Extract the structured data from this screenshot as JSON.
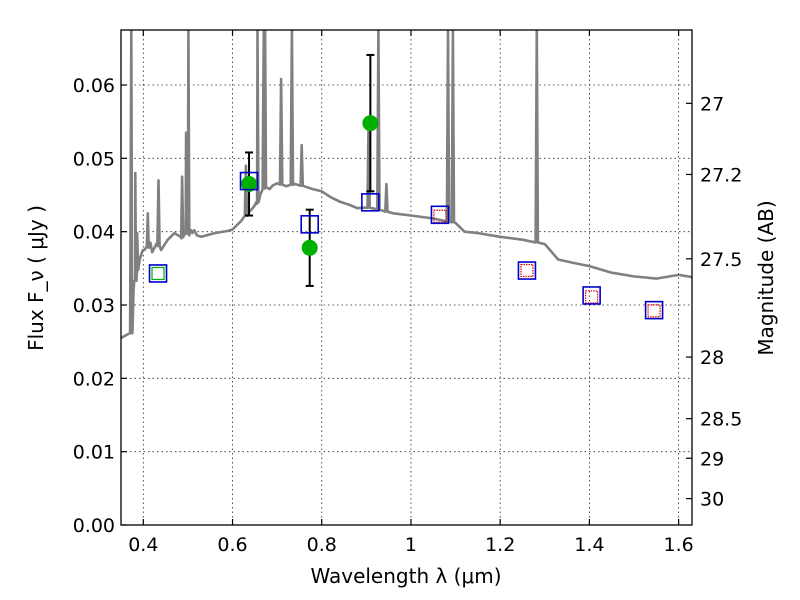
{
  "chart_data": {
    "type": "scatter",
    "xlabel": "Wavelength  λ (μm)",
    "ylabel_left": "Flux  F_ν  ( μJy )",
    "ylabel_right": "Magnitude (AB)",
    "xlim": [
      0.35,
      1.63
    ],
    "ylim": [
      0.0,
      0.0675
    ],
    "grid": true,
    "x_ticks": [
      0.4,
      0.6,
      0.8,
      1.0,
      1.2,
      1.4,
      1.6
    ],
    "x_tick_labels": [
      "0.4",
      "0.6",
      "0.8",
      "1",
      "1.2",
      "1.4",
      "1.6"
    ],
    "y_ticks": [
      0.0,
      0.01,
      0.02,
      0.03,
      0.04,
      0.05,
      0.06
    ],
    "y_tick_labels": [
      "0.00",
      "0.01",
      "0.02",
      "0.03",
      "0.04",
      "0.05",
      "0.06"
    ],
    "right_ticks": [
      {
        "label": "27",
        "flux": 0.0575
      },
      {
        "label": "27.2",
        "flux": 0.0478
      },
      {
        "label": "27.5",
        "flux": 0.0363
      },
      {
        "label": "28",
        "flux": 0.0229
      },
      {
        "label": "28.5",
        "flux": 0.0145
      },
      {
        "label": "29",
        "flux": 0.0091
      },
      {
        "label": "30",
        "flux": 0.0036
      }
    ],
    "model_spectrum": {
      "color": "#808080",
      "x": [
        0.35,
        0.365,
        0.375,
        0.378,
        0.382,
        0.386,
        0.392,
        0.395,
        0.399,
        0.403,
        0.408,
        0.412,
        0.416,
        0.42,
        0.43,
        0.44,
        0.455,
        0.47,
        0.485,
        0.495,
        0.5,
        0.503,
        0.507,
        0.51,
        0.514,
        0.517,
        0.52,
        0.53,
        0.56,
        0.59,
        0.6,
        0.62,
        0.635,
        0.648,
        0.655,
        0.658,
        0.662,
        0.667,
        0.675,
        0.683,
        0.69,
        0.7,
        0.72,
        0.74,
        0.76,
        0.78,
        0.8,
        0.82,
        0.84,
        0.86,
        0.88,
        0.9,
        0.92,
        0.94,
        0.96,
        1.0,
        1.05,
        1.1,
        1.12,
        1.15,
        1.2,
        1.25,
        1.3,
        1.33,
        1.36,
        1.4,
        1.45,
        1.5,
        1.55,
        1.6,
        1.63
      ],
      "y": [
        0.0255,
        0.026,
        0.0262,
        0.0318,
        0.0333,
        0.0348,
        0.0362,
        0.0368,
        0.0375,
        0.0375,
        0.0382,
        0.0378,
        0.0385,
        0.0372,
        0.0384,
        0.0375,
        0.0389,
        0.0398,
        0.0391,
        0.0398,
        0.0398,
        0.0395,
        0.0402,
        0.0398,
        0.0402,
        0.0399,
        0.0395,
        0.0393,
        0.0398,
        0.0401,
        0.0403,
        0.0415,
        0.0425,
        0.0434,
        0.0438,
        0.0445,
        0.045,
        0.0457,
        0.0462,
        0.0458,
        0.0463,
        0.0466,
        0.0462,
        0.0465,
        0.0462,
        0.0458,
        0.0455,
        0.0447,
        0.0441,
        0.0437,
        0.0432,
        0.0433,
        0.0431,
        0.0428,
        0.0425,
        0.0422,
        0.0418,
        0.0412,
        0.04,
        0.0398,
        0.0393,
        0.0389,
        0.0383,
        0.0362,
        0.0358,
        0.0353,
        0.0344,
        0.0339,
        0.0336,
        0.0341,
        0.0338
      ]
    },
    "emission_lines": [
      {
        "x": 0.373,
        "peak": 0.0675
      },
      {
        "x": 0.382,
        "peak": 0.048
      },
      {
        "x": 0.386,
        "peak": 0.0398
      },
      {
        "x": 0.41,
        "peak": 0.0425
      },
      {
        "x": 0.434,
        "peak": 0.047
      },
      {
        "x": 0.487,
        "peak": 0.0475
      },
      {
        "x": 0.496,
        "peak": 0.0535
      },
      {
        "x": 0.501,
        "peak": 0.0675
      },
      {
        "x": 0.63,
        "peak": 0.049
      },
      {
        "x": 0.656,
        "peak": 0.0675
      },
      {
        "x": 0.67,
        "peak": 0.0675
      },
      {
        "x": 0.673,
        "peak": 0.0675
      },
      {
        "x": 0.709,
        "peak": 0.0608
      },
      {
        "x": 0.733,
        "peak": 0.0675
      },
      {
        "x": 0.755,
        "peak": 0.0518
      },
      {
        "x": 0.905,
        "peak": 0.0555
      },
      {
        "x": 0.927,
        "peak": 0.0675
      },
      {
        "x": 0.945,
        "peak": 0.0465
      },
      {
        "x": 1.083,
        "peak": 0.0675
      },
      {
        "x": 1.094,
        "peak": 0.0675
      },
      {
        "x": 1.282,
        "peak": 0.0675
      }
    ],
    "observed": {
      "color": "#00b000",
      "points": [
        {
          "x": 0.637,
          "y": 0.0465,
          "yerr": 0.0043
        },
        {
          "x": 0.773,
          "y": 0.0378,
          "yerr": 0.0052
        },
        {
          "x": 0.909,
          "y": 0.0548,
          "yerr": 0.0093
        }
      ]
    },
    "model_photometry": {
      "color": "#0000cc",
      "points": [
        {
          "x": 0.433,
          "y": 0.0343
        },
        {
          "x": 0.637,
          "y": 0.0469
        },
        {
          "x": 0.773,
          "y": 0.041
        },
        {
          "x": 0.909,
          "y": 0.044
        },
        {
          "x": 1.065,
          "y": 0.0423
        },
        {
          "x": 1.26,
          "y": 0.0347
        },
        {
          "x": 1.405,
          "y": 0.0313
        },
        {
          "x": 1.545,
          "y": 0.0293
        }
      ]
    },
    "upper_limits": {
      "green": [
        {
          "x": 0.433,
          "y": 0.0343
        }
      ],
      "red": [
        {
          "x": 1.065,
          "y": 0.0421
        },
        {
          "x": 1.26,
          "y": 0.0347
        },
        {
          "x": 1.405,
          "y": 0.0311
        },
        {
          "x": 1.545,
          "y": 0.0292
        }
      ]
    }
  }
}
